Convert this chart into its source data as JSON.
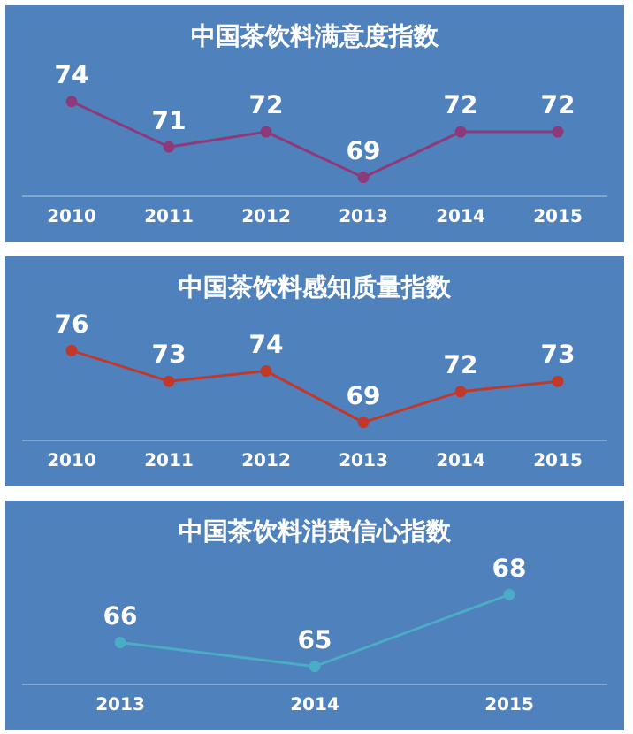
{
  "chart_data": [
    {
      "type": "line",
      "title": "中国茶饮料满意度指数",
      "categories": [
        "2010",
        "2011",
        "2012",
        "2013",
        "2014",
        "2015"
      ],
      "series": [
        {
          "color": "#8e3a7a",
          "values": [
            74,
            71,
            72,
            69,
            72,
            72
          ]
        }
      ],
      "data_labels": true,
      "marker": "circle",
      "grid": false,
      "legend": false
    },
    {
      "type": "line",
      "title": "中国茶饮料感知质量指数",
      "categories": [
        "2010",
        "2011",
        "2012",
        "2013",
        "2014",
        "2015"
      ],
      "series": [
        {
          "color": "#c0392b",
          "values": [
            76,
            73,
            74,
            69,
            72,
            73
          ]
        }
      ],
      "data_labels": true,
      "marker": "circle",
      "grid": false,
      "legend": false
    },
    {
      "type": "line",
      "title": "中国茶饮料消费信心指数",
      "categories": [
        "2013",
        "2014",
        "2015"
      ],
      "series": [
        {
          "color": "#4bacc6",
          "values": [
            66,
            65,
            68
          ]
        }
      ],
      "data_labels": true,
      "marker": "circle",
      "grid": false,
      "legend": false
    }
  ]
}
